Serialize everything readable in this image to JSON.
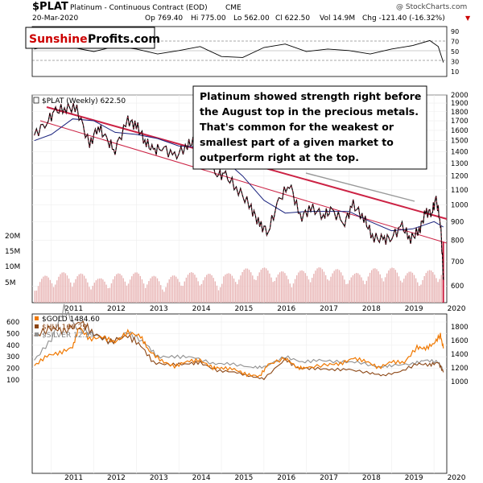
{
  "header": {
    "symbol": "$PLAT",
    "name": "Platinum - Continuous Contract (EOD)",
    "exchange": "CME",
    "date": "20-Mar-2020",
    "open": "Op 769.40",
    "high": "Hi 775.00",
    "low": "Lo 562.00",
    "close": "Cl 622.50",
    "volume": "Vol 14.9M",
    "change": "Chg -121.40 (-16.32%)",
    "change_marker": "▼",
    "credit": "@ StockCharts.com"
  },
  "logo": {
    "part1": "Sunshine",
    "part2": "Profits.com"
  },
  "annotation": {
    "lines": [
      "Platinum showed strength right before",
      "the August top in the precious metals.",
      "That's common for the weakest or",
      "smallest part of a given market to",
      "outperform right at the top."
    ]
  },
  "colors": {
    "price": "#000000",
    "price_down": "#cc2244",
    "ma": "#1a237e",
    "trendline": "#cc2244",
    "volume": "#e8b4b4",
    "gold": "#f07800",
    "hui": "#8b4513",
    "silver": "#909090",
    "rsi": "#000000"
  },
  "chart_data": [
    {
      "type": "line",
      "panel": "rsi",
      "series": [
        {
          "name": "RSI",
          "x": [
            2010.6,
            2011.0,
            2011.5,
            2012.0,
            2012.5,
            2013.0,
            2013.5,
            2014.0,
            2014.5,
            2015.0,
            2015.5,
            2016.0,
            2016.5,
            2017.0,
            2017.5,
            2018.0,
            2018.5,
            2019.0,
            2019.5,
            2019.9,
            2020.1,
            2020.22
          ],
          "y": [
            55,
            62,
            58,
            50,
            60,
            55,
            45,
            52,
            60,
            40,
            38,
            58,
            65,
            50,
            55,
            52,
            45,
            55,
            62,
            72,
            60,
            28
          ]
        }
      ],
      "ylim": [
        0,
        100
      ],
      "yticks": [
        10,
        30,
        50,
        70,
        90
      ]
    },
    {
      "type": "line",
      "panel": "price",
      "title": "$PLAT (Weekly) 622.50",
      "series": [
        {
          "name": "$PLAT (Weekly)",
          "x": [
            2010.6,
            2010.9,
            2011.1,
            2011.35,
            2011.6,
            2011.9,
            2012.1,
            2012.3,
            2012.5,
            2012.8,
            2013.0,
            2013.2,
            2013.4,
            2013.6,
            2013.9,
            2014.2,
            2014.4,
            2014.6,
            2014.9,
            2015.1,
            2015.4,
            2015.7,
            2015.9,
            2016.1,
            2016.35,
            2016.6,
            2016.85,
            2017.1,
            2017.4,
            2017.6,
            2017.9,
            2018.1,
            2018.35,
            2018.55,
            2018.8,
            2019.0,
            2019.25,
            2019.45,
            2019.65,
            2019.8,
            2019.95,
            2020.05,
            2020.15,
            2020.22
          ],
          "y": [
            1550,
            1700,
            1800,
            1850,
            1830,
            1450,
            1650,
            1500,
            1420,
            1700,
            1650,
            1500,
            1400,
            1450,
            1350,
            1460,
            1500,
            1430,
            1220,
            1200,
            1100,
            980,
            880,
            850,
            1020,
            1150,
            920,
            980,
            940,
            960,
            900,
            1000,
            920,
            820,
            800,
            820,
            870,
            810,
            850,
            950,
            960,
            1030,
            900,
            622.5
          ]
        },
        {
          "name": "MA",
          "x": [
            2010.6,
            2011.0,
            2011.5,
            2012.0,
            2012.5,
            2013.0,
            2013.5,
            2014.0,
            2014.5,
            2015.0,
            2015.5,
            2016.0,
            2016.5,
            2017.0,
            2017.5,
            2018.0,
            2018.5,
            2019.0,
            2019.5,
            2020.0,
            2020.22
          ],
          "y": [
            1500,
            1560,
            1720,
            1700,
            1580,
            1560,
            1520,
            1450,
            1440,
            1350,
            1200,
            1030,
            950,
            960,
            960,
            960,
            900,
            850,
            860,
            900,
            870
          ]
        }
      ],
      "volume_axis_labels": [
        "20M",
        "15M",
        "10M",
        "5M"
      ],
      "ylim": [
        540,
        2000
      ],
      "yticks": [
        600,
        700,
        800,
        900,
        1000,
        1100,
        1200,
        1300,
        1400,
        1500,
        1600,
        1700,
        1800,
        1900,
        2000
      ],
      "x_labels": [
        "2011",
        "2012",
        "2013",
        "2014",
        "2015",
        "2016",
        "2017",
        "2018",
        "2019",
        "2020"
      ]
    },
    {
      "type": "line",
      "panel": "comparison",
      "series": [
        {
          "name": "$GOLD",
          "label": "$GOLD 1484.60",
          "x": [
            2010.6,
            2010.9,
            2011.2,
            2011.5,
            2011.65,
            2011.9,
            2012.2,
            2012.5,
            2012.8,
            2013.1,
            2013.3,
            2013.6,
            2013.9,
            2014.2,
            2014.5,
            2014.8,
            2015.0,
            2015.3,
            2015.6,
            2015.9,
            2016.1,
            2016.5,
            2016.8,
            2017.0,
            2017.5,
            2017.8,
            2018.1,
            2018.4,
            2018.7,
            2019.0,
            2019.3,
            2019.6,
            2019.8,
            2020.0,
            2020.15,
            2020.22
          ],
          "y": [
            1230,
            1380,
            1420,
            1500,
            1800,
            1620,
            1650,
            1580,
            1720,
            1660,
            1450,
            1300,
            1220,
            1300,
            1310,
            1200,
            1200,
            1180,
            1100,
            1080,
            1250,
            1340,
            1200,
            1200,
            1250,
            1260,
            1340,
            1300,
            1200,
            1290,
            1280,
            1500,
            1480,
            1560,
            1680,
            1484.6
          ]
        },
        {
          "name": "$HUI",
          "label": "$HUI 166.29",
          "x": [
            2010.6,
            2011.0,
            2011.3,
            2011.7,
            2012.0,
            2012.4,
            2012.8,
            2013.1,
            2013.4,
            2013.8,
            2014.2,
            2014.5,
            2014.9,
            2015.3,
            2015.7,
            2016.0,
            2016.5,
            2016.8,
            2017.2,
            2017.6,
            2018.0,
            2018.5,
            2018.8,
            2019.2,
            2019.6,
            2019.9,
            2020.1,
            2020.22
          ],
          "y": [
            480,
            550,
            520,
            600,
            500,
            430,
            480,
            400,
            250,
            230,
            240,
            250,
            180,
            170,
            130,
            110,
            280,
            200,
            200,
            190,
            190,
            160,
            140,
            170,
            240,
            230,
            250,
            166.29
          ]
        },
        {
          "name": "$SILVER",
          "label": "$SILVER 12.39",
          "x": [
            2010.6,
            2011.0,
            2011.3,
            2011.6,
            2012.0,
            2012.4,
            2012.8,
            2013.2,
            2013.5,
            2013.9,
            2014.3,
            2014.8,
            2015.2,
            2015.7,
            2016.0,
            2016.5,
            2016.9,
            2017.3,
            2017.8,
            2018.2,
            2018.7,
            2019.0,
            2019.5,
            2019.8,
            2020.1,
            2020.22
          ],
          "y": [
            18,
            30,
            48,
            36,
            33,
            28,
            34,
            28,
            20,
            20,
            20,
            16,
            16,
            14,
            14,
            20,
            17,
            18,
            17,
            17,
            14,
            15,
            16,
            18,
            17,
            12.39
          ]
        }
      ],
      "left_ticks": [
        100,
        200,
        300,
        400,
        500,
        600
      ],
      "right_ticks": [
        1000,
        1200,
        1400,
        1600,
        1800
      ],
      "x_labels": [
        "2011",
        "2012",
        "2013",
        "2014",
        "2015",
        "2016",
        "2017",
        "2018",
        "2019",
        "2020"
      ]
    }
  ]
}
